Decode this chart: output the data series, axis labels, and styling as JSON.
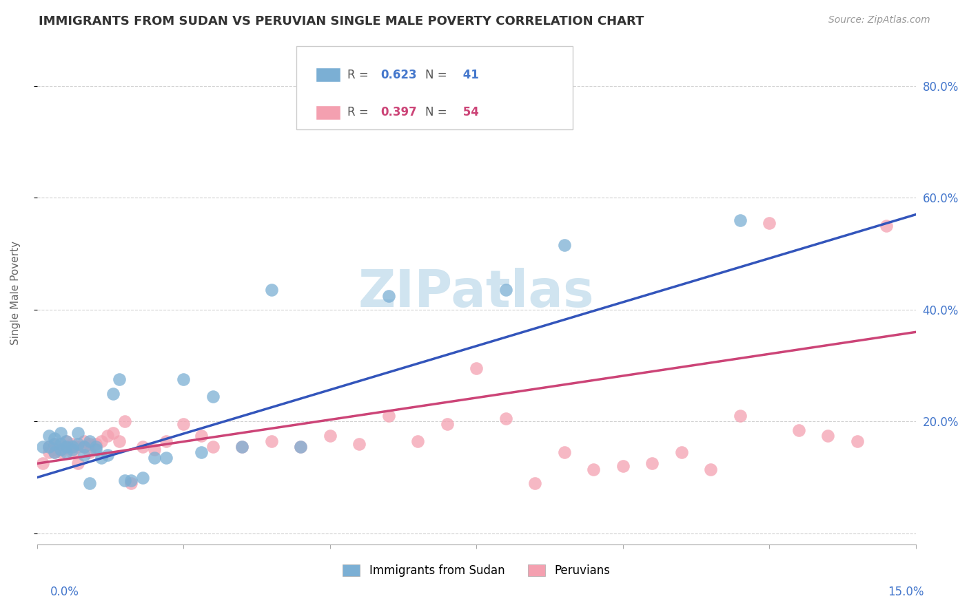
{
  "title": "IMMIGRANTS FROM SUDAN VS PERUVIAN SINGLE MALE POVERTY CORRELATION CHART",
  "source": "Source: ZipAtlas.com",
  "ylabel": "Single Male Poverty",
  "xlim": [
    0.0,
    0.15
  ],
  "ylim": [
    -0.02,
    0.88
  ],
  "ytick_vals": [
    0.0,
    0.2,
    0.4,
    0.6,
    0.8
  ],
  "ytick_labels": [
    "",
    "20.0%",
    "40.0%",
    "60.0%",
    "80.0%"
  ],
  "blue_color": "#7BAFD4",
  "pink_color": "#F4A0B0",
  "blue_line_color": "#3355BB",
  "pink_line_color": "#CC4477",
  "blue_scatter_x": [
    0.001,
    0.002,
    0.002,
    0.003,
    0.003,
    0.003,
    0.004,
    0.004,
    0.004,
    0.005,
    0.005,
    0.005,
    0.006,
    0.006,
    0.007,
    0.007,
    0.008,
    0.008,
    0.009,
    0.009,
    0.01,
    0.01,
    0.011,
    0.012,
    0.013,
    0.014,
    0.015,
    0.016,
    0.018,
    0.02,
    0.022,
    0.025,
    0.028,
    0.03,
    0.035,
    0.04,
    0.045,
    0.06,
    0.08,
    0.09,
    0.12
  ],
  "blue_scatter_y": [
    0.155,
    0.175,
    0.155,
    0.145,
    0.16,
    0.17,
    0.18,
    0.15,
    0.16,
    0.155,
    0.165,
    0.145,
    0.15,
    0.155,
    0.16,
    0.18,
    0.155,
    0.14,
    0.165,
    0.09,
    0.15,
    0.155,
    0.135,
    0.14,
    0.25,
    0.275,
    0.095,
    0.095,
    0.1,
    0.135,
    0.135,
    0.275,
    0.145,
    0.245,
    0.155,
    0.435,
    0.155,
    0.425,
    0.435,
    0.515,
    0.56
  ],
  "pink_scatter_x": [
    0.001,
    0.002,
    0.002,
    0.003,
    0.003,
    0.003,
    0.004,
    0.004,
    0.005,
    0.005,
    0.006,
    0.006,
    0.007,
    0.007,
    0.008,
    0.008,
    0.009,
    0.009,
    0.01,
    0.011,
    0.012,
    0.013,
    0.014,
    0.015,
    0.016,
    0.018,
    0.02,
    0.022,
    0.025,
    0.028,
    0.03,
    0.035,
    0.04,
    0.045,
    0.05,
    0.055,
    0.06,
    0.065,
    0.07,
    0.075,
    0.08,
    0.085,
    0.09,
    0.095,
    0.1,
    0.105,
    0.11,
    0.115,
    0.12,
    0.125,
    0.13,
    0.135,
    0.14,
    0.145
  ],
  "pink_scatter_y": [
    0.125,
    0.145,
    0.155,
    0.15,
    0.145,
    0.16,
    0.15,
    0.145,
    0.155,
    0.165,
    0.16,
    0.145,
    0.155,
    0.125,
    0.165,
    0.155,
    0.145,
    0.16,
    0.16,
    0.165,
    0.175,
    0.18,
    0.165,
    0.2,
    0.09,
    0.155,
    0.15,
    0.165,
    0.195,
    0.175,
    0.155,
    0.155,
    0.165,
    0.155,
    0.175,
    0.16,
    0.21,
    0.165,
    0.195,
    0.295,
    0.205,
    0.09,
    0.145,
    0.115,
    0.12,
    0.125,
    0.145,
    0.115,
    0.21,
    0.555,
    0.185,
    0.175,
    0.165,
    0.55
  ],
  "blue_trendline_x": [
    0.0,
    0.15
  ],
  "blue_trendline_y": [
    0.1,
    0.57
  ],
  "pink_trendline_x": [
    0.0,
    0.15
  ],
  "pink_trendline_y": [
    0.125,
    0.36
  ],
  "legend_blue_R": "0.623",
  "legend_blue_N": "41",
  "legend_pink_R": "0.397",
  "legend_pink_N": "54",
  "label_color": "#4477CC",
  "watermark_color": "#D0E4F0"
}
